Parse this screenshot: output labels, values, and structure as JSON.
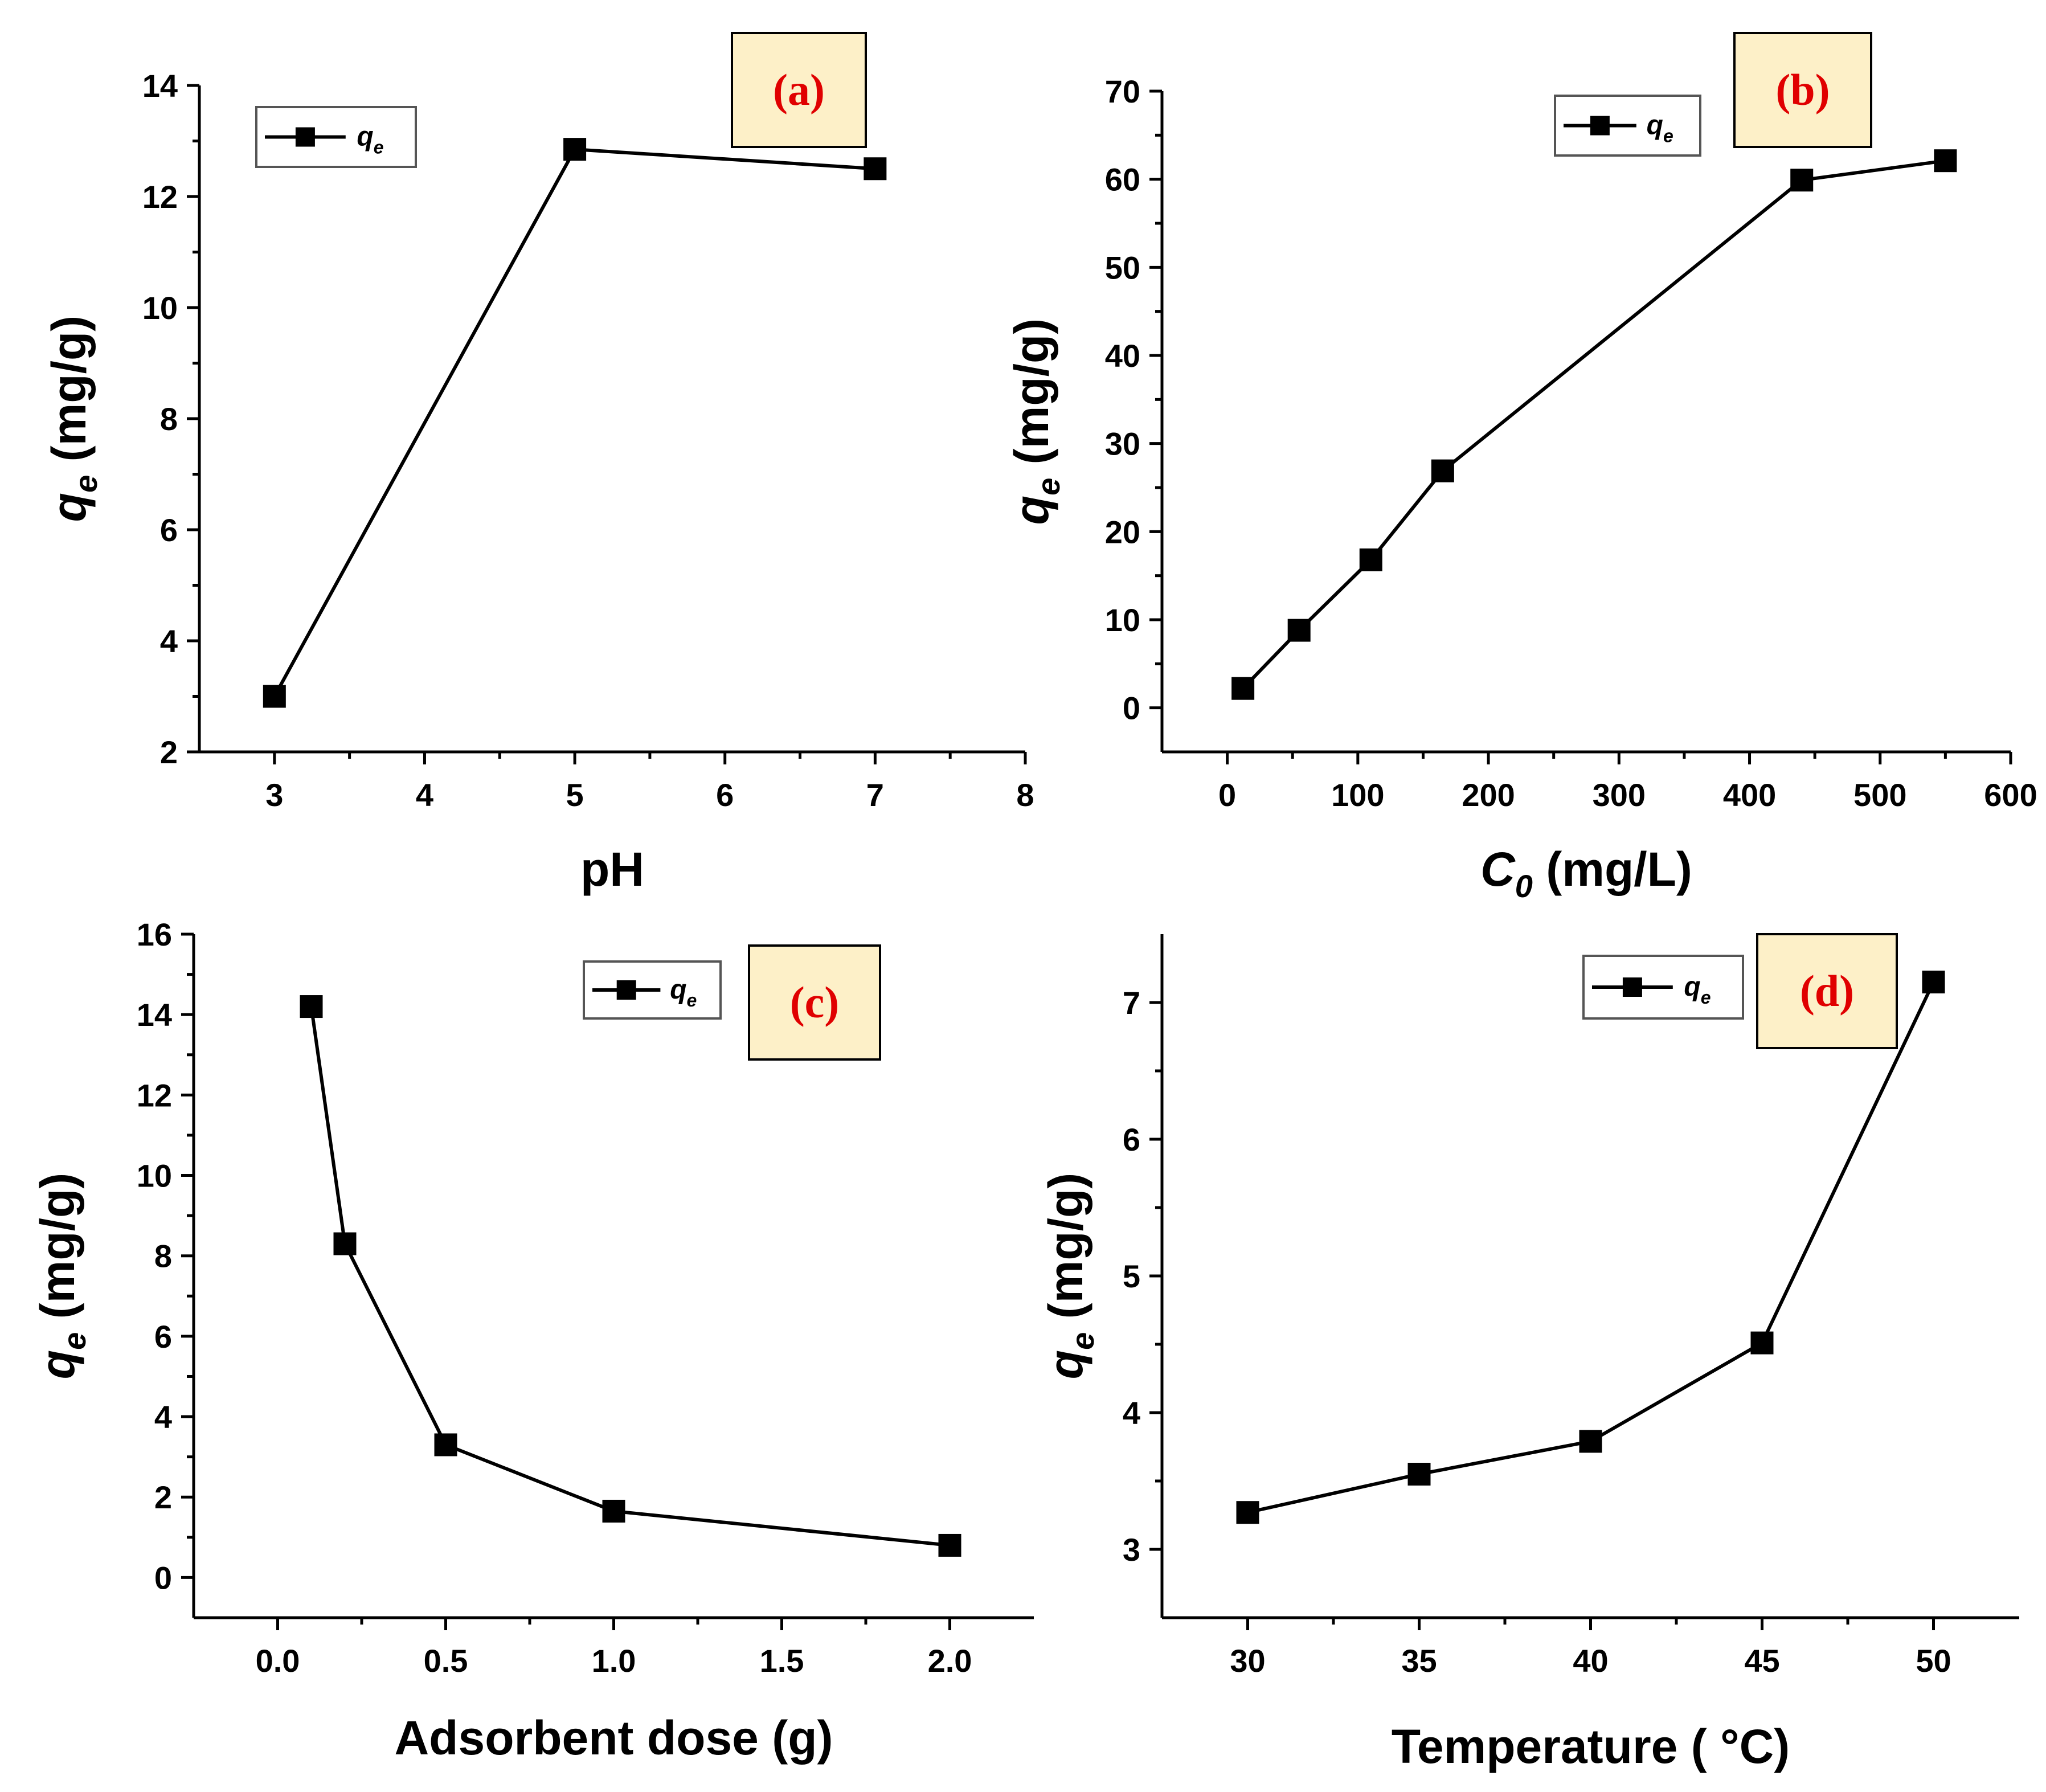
{
  "colors": {
    "line": "#000000",
    "label_text": "#e00000",
    "label_box": "#fdf0c8",
    "legend_border": "#555555"
  },
  "chart_data": [
    {
      "type": "line",
      "panel_label": "(a)",
      "legend": "q",
      "legend_sub": "e",
      "x": [
        3,
        5,
        7
      ],
      "y": [
        3.0,
        12.85,
        12.5
      ],
      "xlim": [
        2.5,
        8
      ],
      "ylim": [
        2,
        14
      ],
      "xticks": [
        3,
        4,
        5,
        6,
        7,
        8
      ],
      "xtick_labels": [
        "3",
        "4",
        "5",
        "6",
        "7",
        "8"
      ],
      "yticks": [
        2,
        4,
        6,
        8,
        10,
        12,
        14
      ],
      "ytick_labels": [
        "2",
        "4",
        "6",
        "8",
        "10",
        "12",
        "14"
      ],
      "xlabel": "pH",
      "xlabel_sub": "",
      "xlabel_rest": "",
      "ylabel": "q",
      "ylabel_sub": "e",
      "ylabel_rest": " (mg/g)"
    },
    {
      "type": "line",
      "panel_label": "(b)",
      "legend": "q",
      "legend_sub": "e",
      "x": [
        12,
        55,
        110,
        165,
        440,
        550
      ],
      "y": [
        2.2,
        8.8,
        16.8,
        26.9,
        59.9,
        62.1
      ],
      "xlim": [
        -50,
        600
      ],
      "ylim": [
        -5,
        70
      ],
      "xticks": [
        0,
        100,
        200,
        300,
        400,
        500,
        600
      ],
      "xtick_labels": [
        "0",
        "100",
        "200",
        "300",
        "400",
        "500",
        "600"
      ],
      "yticks": [
        0,
        10,
        20,
        30,
        40,
        50,
        60,
        70
      ],
      "ytick_labels": [
        "0",
        "10",
        "20",
        "30",
        "40",
        "50",
        "60",
        "70"
      ],
      "xlabel": "C",
      "xlabel_sub": "0",
      "xlabel_rest": " (mg/L)",
      "ylabel": "q",
      "ylabel_sub": "e",
      "ylabel_rest": " (mg/g)"
    },
    {
      "type": "line",
      "panel_label": "(c)",
      "legend": "q",
      "legend_sub": "e",
      "x": [
        0.1,
        0.2,
        0.5,
        1.0,
        2.0
      ],
      "y": [
        14.2,
        8.3,
        3.3,
        1.65,
        0.8
      ],
      "xlim": [
        -0.25,
        2.25
      ],
      "ylim": [
        -1,
        16
      ],
      "xticks": [
        0.0,
        0.5,
        1.0,
        1.5,
        2.0
      ],
      "xtick_labels": [
        "0.0",
        "0.5",
        "1.0",
        "1.5",
        "2.0"
      ],
      "yticks": [
        0,
        2,
        4,
        6,
        8,
        10,
        12,
        14,
        16
      ],
      "ytick_labels": [
        "0",
        "2",
        "4",
        "6",
        "8",
        "10",
        "12",
        "14",
        "16"
      ],
      "xlabel": "Adsorbent dose (g)",
      "xlabel_sub": "",
      "xlabel_rest": "",
      "ylabel": "q",
      "ylabel_sub": "e",
      "ylabel_rest": " (mg/g)"
    },
    {
      "type": "line",
      "panel_label": "(d)",
      "legend": "q",
      "legend_sub": "e",
      "x": [
        30,
        35,
        40,
        45,
        50
      ],
      "y": [
        3.27,
        3.55,
        3.79,
        4.51,
        7.15
      ],
      "xlim": [
        27.5,
        52.5
      ],
      "ylim": [
        2.5,
        7.5
      ],
      "xticks": [
        30,
        35,
        40,
        45,
        50
      ],
      "xtick_labels": [
        "30",
        "35",
        "40",
        "45",
        "50"
      ],
      "yticks": [
        3,
        4,
        5,
        6,
        7
      ],
      "ytick_labels": [
        "3",
        "4",
        "5",
        "6",
        "7"
      ],
      "xlabel": "Temperature ( °C)",
      "xlabel_sub": "",
      "xlabel_rest": "",
      "ylabel": "q",
      "ylabel_sub": "e",
      "ylabel_rest": " (mg/g)"
    }
  ]
}
